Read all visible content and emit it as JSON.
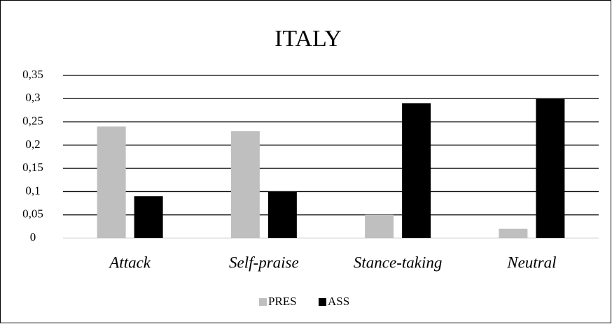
{
  "chart_data": {
    "type": "bar",
    "title": "ITALY",
    "categories": [
      "Attack",
      "Self-praise",
      "Stance-taking",
      "Neutral"
    ],
    "series": [
      {
        "name": "PRES",
        "color": "#bfbfbf",
        "values": [
          0.24,
          0.23,
          0.05,
          0.02
        ]
      },
      {
        "name": "ASS",
        "color": "#000000",
        "values": [
          0.09,
          0.1,
          0.29,
          0.3
        ]
      }
    ],
    "ylim": [
      0,
      0.35
    ],
    "yticks": [
      0,
      {
        "value": 0.05,
        "label": "0,05"
      },
      {
        "value": 0.1,
        "label": "0,1"
      },
      {
        "value": 0.15,
        "label": "0,15"
      },
      {
        "value": 0.2,
        "label": "0,2"
      },
      {
        "value": 0.25,
        "label": "0,25"
      },
      {
        "value": 0.3,
        "label": "0,3"
      },
      {
        "value": 0.35,
        "label": "0,35"
      }
    ],
    "grid": true,
    "legend": "bottom"
  }
}
